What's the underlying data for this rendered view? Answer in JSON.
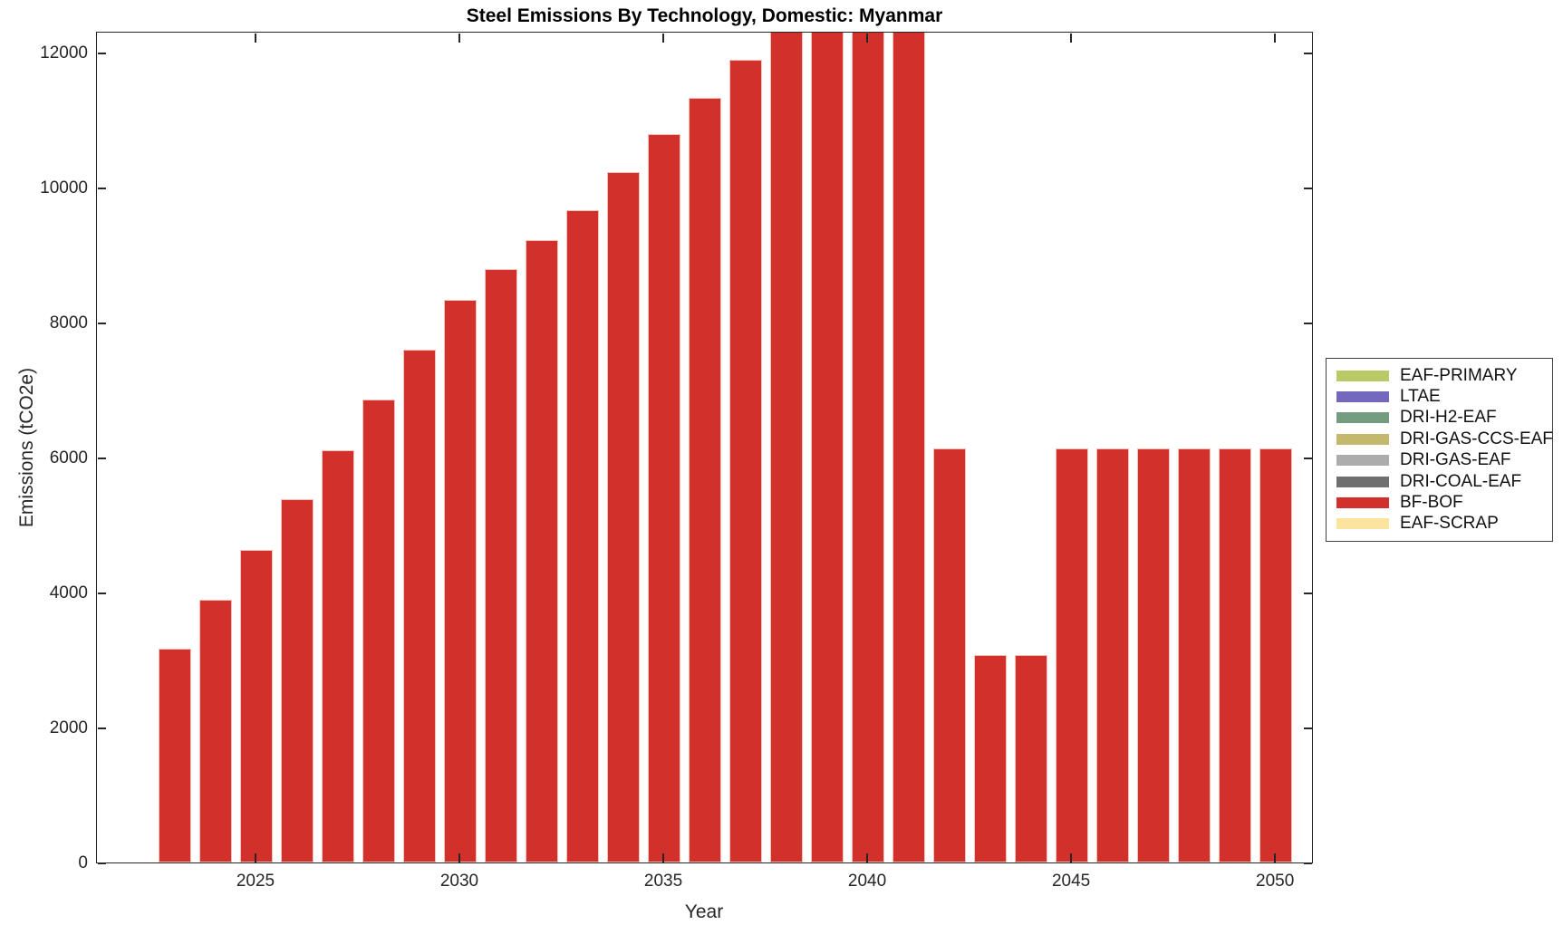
{
  "figure": {
    "title": "Steel Emissions By Technology, Domestic: Myanmar",
    "background_color": "#ffffff",
    "axis_color": "#262626",
    "bar_color": "#d2312b"
  },
  "axes": {
    "xlabel": "Year",
    "ylabel": "Emissions (tCO2e)",
    "x_tick_labels": [
      "2025",
      "2030",
      "2035",
      "2040",
      "2045",
      "2050"
    ],
    "y_tick_labels": [
      "0",
      "2000",
      "4000",
      "6000",
      "8000",
      "10000",
      "12000"
    ]
  },
  "legend": {
    "items": [
      {
        "label": "EAF-PRIMARY",
        "color": "#b8c966"
      },
      {
        "label": "LTAE",
        "color": "#7468bd"
      },
      {
        "label": "DRI-H2-EAF",
        "color": "#749c81"
      },
      {
        "label": "DRI-GAS-CCS-EAF",
        "color": "#c4b86d"
      },
      {
        "label": "DRI-GAS-EAF",
        "color": "#acacac"
      },
      {
        "label": "DRI-COAL-EAF",
        "color": "#6f6f6f"
      },
      {
        "label": "BF-BOF",
        "color": "#d2312b"
      },
      {
        "label": "EAF-SCRAP",
        "color": "#fbe49e"
      }
    ]
  },
  "chart_data": {
    "type": "bar",
    "title": "Steel Emissions By Technology, Domestic: Myanmar",
    "xlabel": "Year",
    "ylabel": "Emissions (tCO2e)",
    "x": [
      2023,
      2024,
      2025,
      2026,
      2027,
      2028,
      2029,
      2030,
      2031,
      2032,
      2033,
      2034,
      2035,
      2036,
      2037,
      2038,
      2039,
      2040,
      2041,
      2042,
      2043,
      2044,
      2045,
      2046,
      2047,
      2048,
      2049,
      2050
    ],
    "series": [
      {
        "name": "BF-BOF",
        "color": "#d2312b",
        "values": [
          3170,
          3890,
          4630,
          5380,
          6110,
          6860,
          7600,
          8330,
          8790,
          9220,
          9660,
          10230,
          10790,
          11330,
          11890,
          12500,
          12900,
          12900,
          12900,
          6130,
          3070,
          3070,
          6130,
          6130,
          6130,
          6130,
          6130,
          6130
        ]
      }
    ],
    "legend_entries": [
      "EAF-PRIMARY",
      "LTAE",
      "DRI-H2-EAF",
      "DRI-GAS-CCS-EAF",
      "DRI-GAS-EAF",
      "DRI-COAL-EAF",
      "BF-BOF",
      "EAF-SCRAP"
    ],
    "x_ticks": [
      2025,
      2030,
      2035,
      2040,
      2045,
      2050
    ],
    "y_ticks": [
      0,
      2000,
      4000,
      6000,
      8000,
      10000,
      12000
    ],
    "xlim": [
      2021.09,
      2050.93
    ],
    "ylim": [
      0,
      12322
    ],
    "bar_width_years": 0.8,
    "grid": false,
    "legend_position": "outside-right",
    "clipped_years": [
      2038,
      2039,
      2040,
      2041
    ],
    "note": "Bars for 2038-2041 exceed the y-axis maximum and are clipped at the top of the plot box."
  }
}
